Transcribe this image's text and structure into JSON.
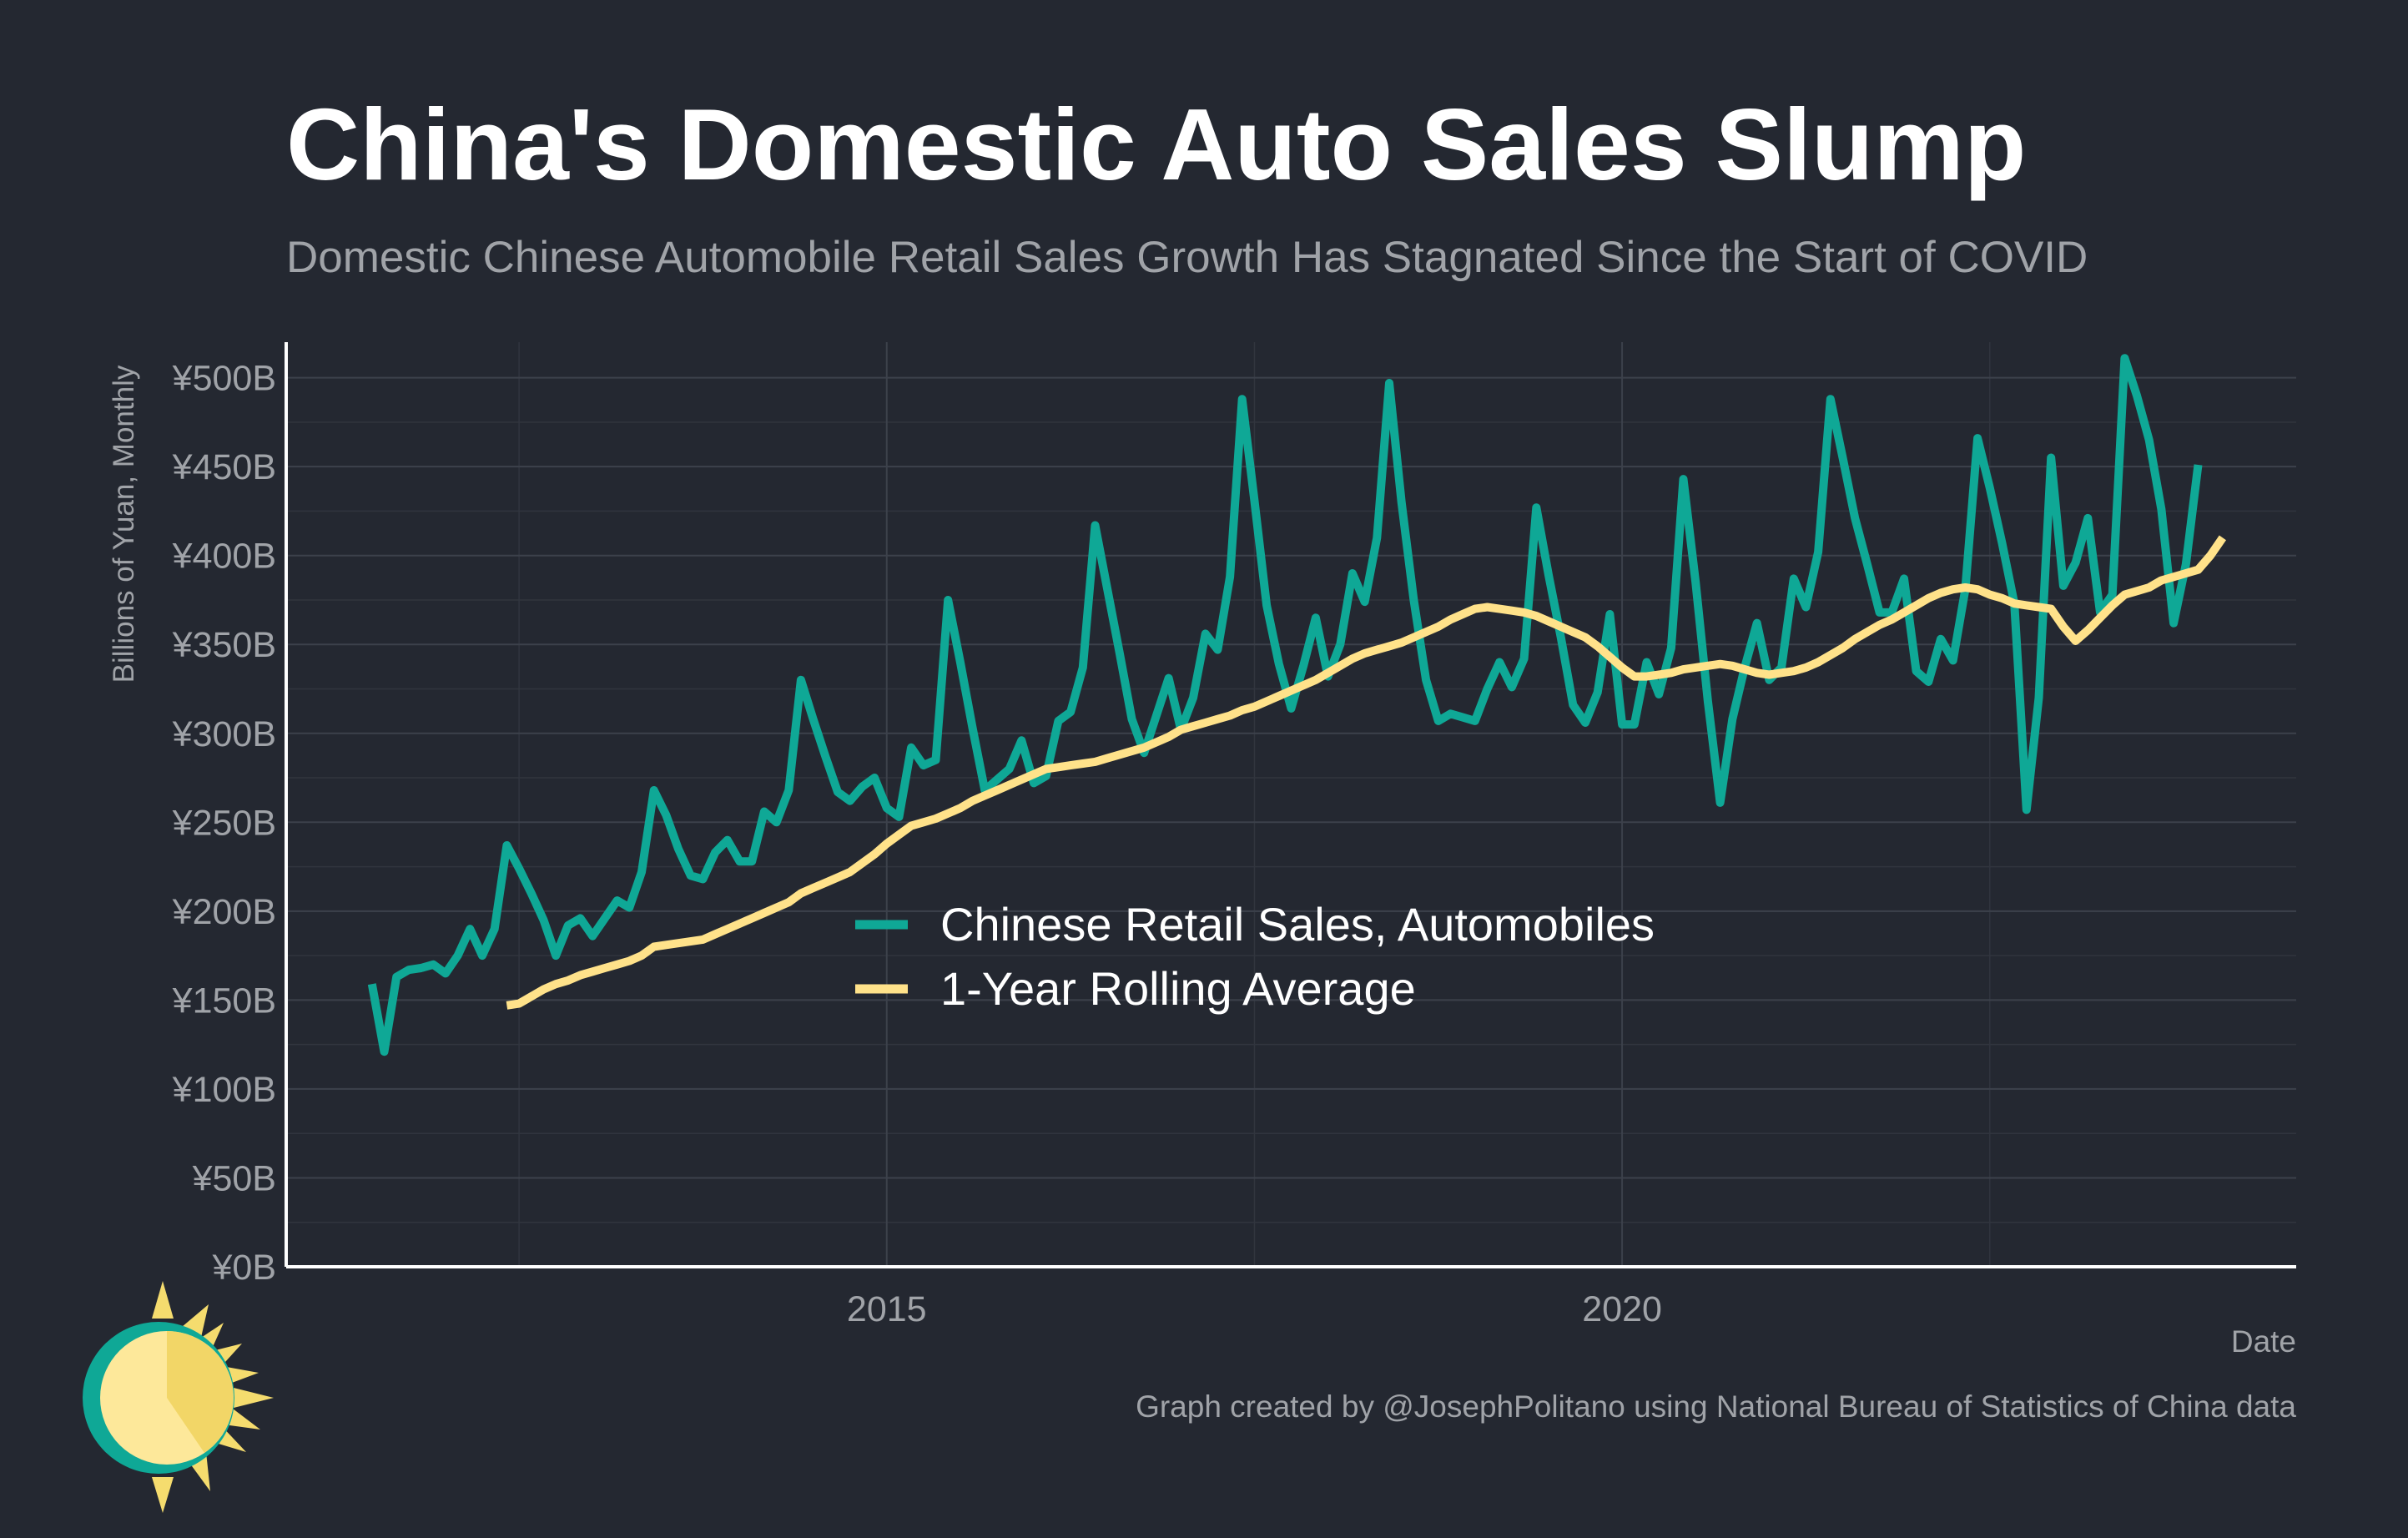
{
  "title": "China's Domestic Auto Sales Slump",
  "subtitle": "Domestic Chinese Automobile Retail Sales Growth Has Stagnated Since the Start of COVID",
  "caption": "Graph created by @JosephPolitano using National Bureau of Statistics of China data",
  "logo_icon": "sun-logo-icon",
  "colors": {
    "background": "#242831",
    "sales": "#0fa896",
    "average": "#ffe28a",
    "grid": "#3a3f49",
    "axis": "#ffffff",
    "tick": "#a0a3a8"
  },
  "chart_data": {
    "type": "line",
    "xlabel": "Date",
    "ylabel": "Billions of Yuan, Monthly",
    "ylim": [
      0,
      520
    ],
    "xlim": [
      "2010-12",
      "2024-08"
    ],
    "y_ticks": [
      0,
      50,
      100,
      150,
      200,
      250,
      300,
      350,
      400,
      450,
      500
    ],
    "y_tick_labels": [
      "¥0B",
      "¥50B",
      "¥100B",
      "¥150B",
      "¥200B",
      "¥250B",
      "¥300B",
      "¥350B",
      "¥400B",
      "¥450B",
      "¥500B"
    ],
    "x_ticks": [
      "2015",
      "2020"
    ],
    "grid": true,
    "legend": {
      "position": "center",
      "entries": [
        "Chinese Retail Sales, Automobiles",
        "1-Year Rolling Average"
      ]
    },
    "x_start": "2011-07",
    "x_step": "1 month",
    "series": [
      {
        "name": "Chinese Retail Sales, Automobiles",
        "color": "#0fa896",
        "values": [
          159,
          121,
          163,
          167,
          168,
          170,
          165,
          175,
          190,
          175,
          190,
          237,
          224,
          210,
          195,
          175,
          192,
          196,
          186,
          196,
          206,
          202,
          222,
          268,
          254,
          235,
          220,
          218,
          233,
          240,
          228,
          228,
          256,
          250,
          268,
          330,
          308,
          287,
          267,
          262,
          270,
          275,
          258,
          253,
          292,
          282,
          285,
          375,
          340,
          303,
          268,
          274,
          280,
          296,
          272,
          276,
          307,
          312,
          337,
          417,
          381,
          345,
          308,
          289,
          310,
          331,
          302,
          320,
          356,
          347,
          388,
          488,
          431,
          372,
          339,
          314,
          338,
          365,
          332,
          350,
          390,
          374,
          410,
          497,
          430,
          375,
          330,
          307,
          311,
          309,
          307,
          325,
          340,
          326,
          342,
          427,
          389,
          354,
          316,
          306,
          323,
          367,
          305,
          305,
          340,
          322,
          348,
          443,
          385,
          318,
          261,
          308,
          337,
          362,
          330,
          337,
          387,
          371,
          402,
          488,
          455,
          421,
          395,
          368,
          368,
          387,
          335,
          329,
          353,
          341,
          381,
          466,
          438,
          407,
          373,
          257,
          320,
          455,
          383,
          396,
          421,
          368,
          378,
          511,
          490,
          465,
          426,
          362,
          395,
          451
        ]
      },
      {
        "name": "1-Year Rolling Average",
        "color": "#ffe28a",
        "values": [
          null,
          null,
          null,
          null,
          null,
          null,
          null,
          null,
          null,
          null,
          null,
          147,
          148,
          152,
          156,
          159,
          161,
          164,
          166,
          168,
          170,
          172,
          175,
          180,
          181,
          182,
          183,
          184,
          187,
          190,
          193,
          196,
          199,
          202,
          205,
          210,
          213,
          216,
          219,
          222,
          227,
          232,
          238,
          243,
          248,
          250,
          252,
          255,
          258,
          262,
          265,
          268,
          271,
          274,
          277,
          280,
          281,
          282,
          283,
          284,
          286,
          288,
          290,
          292,
          295,
          298,
          302,
          304,
          306,
          308,
          310,
          313,
          315,
          318,
          321,
          324,
          327,
          330,
          334,
          338,
          342,
          345,
          347,
          349,
          351,
          354,
          357,
          360,
          364,
          367,
          370,
          371,
          370,
          369,
          368,
          366,
          363,
          360,
          357,
          354,
          349,
          343,
          337,
          332,
          332,
          333,
          334,
          336,
          337,
          338,
          339,
          338,
          336,
          334,
          333,
          334,
          335,
          337,
          340,
          344,
          348,
          353,
          357,
          361,
          364,
          368,
          372,
          376,
          379,
          381,
          382,
          381,
          378,
          376,
          373,
          372,
          371,
          370,
          360,
          352,
          358,
          365,
          372,
          378,
          380,
          382,
          386,
          388,
          390,
          392,
          400,
          410
        ]
      }
    ]
  }
}
